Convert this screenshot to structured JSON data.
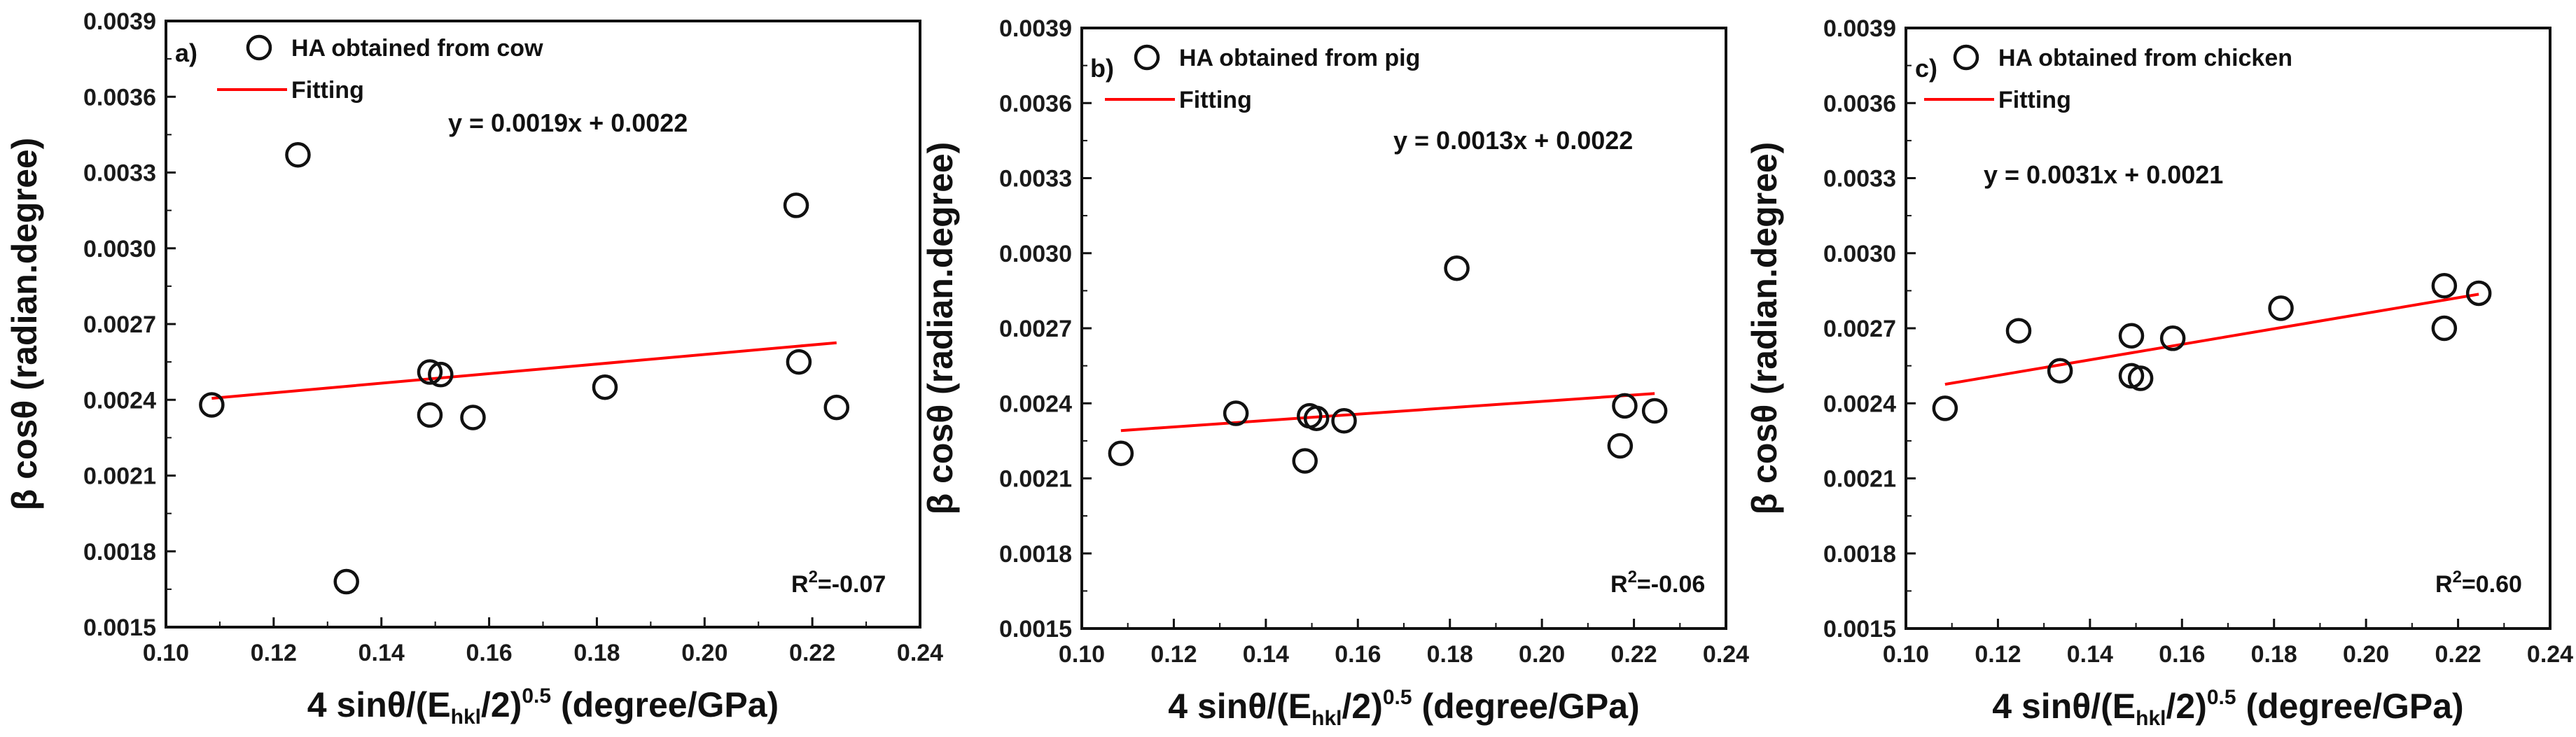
{
  "chart_data": [
    {
      "type": "scatter",
      "panel_label": "a)",
      "legend": {
        "marker_label": "HA obtained from cow",
        "line_label": "Fitting",
        "position": "top-left"
      },
      "xlabel": {
        "prefix": "4 sinθ/(E",
        "sub": "hkl",
        "mid": "/2)",
        "sup": "0.5",
        "suffix": " (degree/GPa)"
      },
      "ylabel": "β cosθ (radian.degree)",
      "xlim": [
        0.1,
        0.24
      ],
      "ylim": [
        0.0015,
        0.0039
      ],
      "xticks": [
        "0.10",
        "0.12",
        "0.14",
        "0.16",
        "0.18",
        "0.20",
        "0.22",
        "0.24"
      ],
      "yticks": [
        "0.0015",
        "0.0018",
        "0.0021",
        "0.0024",
        "0.0027",
        "0.0030",
        "0.0033",
        "0.0036",
        "0.0039"
      ],
      "points": [
        {
          "x": 0.1085,
          "y": 0.00238
        },
        {
          "x": 0.1245,
          "y": 0.00337
        },
        {
          "x": 0.1335,
          "y": 0.00168
        },
        {
          "x": 0.149,
          "y": 0.00251
        },
        {
          "x": 0.151,
          "y": 0.0025
        },
        {
          "x": 0.149,
          "y": 0.00234
        },
        {
          "x": 0.157,
          "y": 0.00233
        },
        {
          "x": 0.1815,
          "y": 0.00245
        },
        {
          "x": 0.217,
          "y": 0.00317
        },
        {
          "x": 0.2175,
          "y": 0.00255
        },
        {
          "x": 0.2245,
          "y": 0.00237
        }
      ],
      "fit": {
        "x": [
          0.1085,
          0.2245
        ],
        "y": [
          0.002406,
          0.002626
        ]
      },
      "fit_color": "#ff0000",
      "equation": "y = 0.0019x + 0.0022",
      "r2": {
        "label": "R",
        "sup": "2",
        "value": "=-0.07"
      }
    },
    {
      "type": "scatter",
      "panel_label": "b)",
      "legend": {
        "marker_label": "HA obtained from pig",
        "line_label": "Fitting",
        "position": "top-left"
      },
      "xlabel": {
        "prefix": "4 sinθ/(E",
        "sub": "hkl",
        "mid": "/2)",
        "sup": "0.5",
        "suffix": " (degree/GPa)"
      },
      "ylabel": "β cosθ (radian.degree)",
      "xlim": [
        0.1,
        0.24
      ],
      "ylim": [
        0.0015,
        0.0039
      ],
      "xticks": [
        "0.10",
        "0.12",
        "0.14",
        "0.16",
        "0.18",
        "0.20",
        "0.22",
        "0.24"
      ],
      "yticks": [
        "0.0015",
        "0.0018",
        "0.0021",
        "0.0024",
        "0.0027",
        "0.0030",
        "0.0033",
        "0.0036",
        "0.0039"
      ],
      "points": [
        {
          "x": 0.1085,
          "y": 0.0022
        },
        {
          "x": 0.1335,
          "y": 0.00236
        },
        {
          "x": 0.1485,
          "y": 0.00217
        },
        {
          "x": 0.1495,
          "y": 0.00235
        },
        {
          "x": 0.151,
          "y": 0.00234
        },
        {
          "x": 0.157,
          "y": 0.00233
        },
        {
          "x": 0.1815,
          "y": 0.00294
        },
        {
          "x": 0.217,
          "y": 0.00223
        },
        {
          "x": 0.218,
          "y": 0.00239
        },
        {
          "x": 0.2245,
          "y": 0.00237
        }
      ],
      "fit": {
        "x": [
          0.1085,
          0.2245
        ],
        "y": [
          0.002291,
          0.002439
        ]
      },
      "fit_color": "#ff0000",
      "equation": "y = 0.0013x + 0.0022",
      "r2": {
        "label": "R",
        "sup": "2",
        "value": "=-0.06"
      }
    },
    {
      "type": "scatter",
      "panel_label": "c)",
      "legend": {
        "marker_label": "HA obtained from chicken",
        "line_label": "Fitting",
        "position": "top-left"
      },
      "xlabel": {
        "prefix": "4 sinθ/(E",
        "sub": "hkl",
        "mid": "/2)",
        "sup": "0.5",
        "suffix": " (degree/GPa)"
      },
      "ylabel": "β cosθ (radian.degree)",
      "xlim": [
        0.1,
        0.24
      ],
      "ylim": [
        0.0015,
        0.0039
      ],
      "xticks": [
        "0.10",
        "0.12",
        "0.14",
        "0.16",
        "0.18",
        "0.20",
        "0.22",
        "0.24"
      ],
      "yticks": [
        "0.0015",
        "0.0018",
        "0.0021",
        "0.0024",
        "0.0027",
        "0.0030",
        "0.0033",
        "0.0036",
        "0.0039"
      ],
      "points": [
        {
          "x": 0.1085,
          "y": 0.00238
        },
        {
          "x": 0.1245,
          "y": 0.00269
        },
        {
          "x": 0.1335,
          "y": 0.00253
        },
        {
          "x": 0.149,
          "y": 0.00267
        },
        {
          "x": 0.149,
          "y": 0.00251
        },
        {
          "x": 0.151,
          "y": 0.0025
        },
        {
          "x": 0.158,
          "y": 0.00266
        },
        {
          "x": 0.1815,
          "y": 0.00278
        },
        {
          "x": 0.217,
          "y": 0.00287
        },
        {
          "x": 0.217,
          "y": 0.0027
        },
        {
          "x": 0.2245,
          "y": 0.00284
        }
      ],
      "fit": {
        "x": [
          0.1085,
          0.2245
        ],
        "y": [
          0.002476,
          0.002836
        ]
      },
      "fit_color": "#ff0000",
      "equation": "y = 0.0031x + 0.0021",
      "r2": {
        "label": "R",
        "sup": "2",
        "value": "=0.60"
      }
    }
  ]
}
